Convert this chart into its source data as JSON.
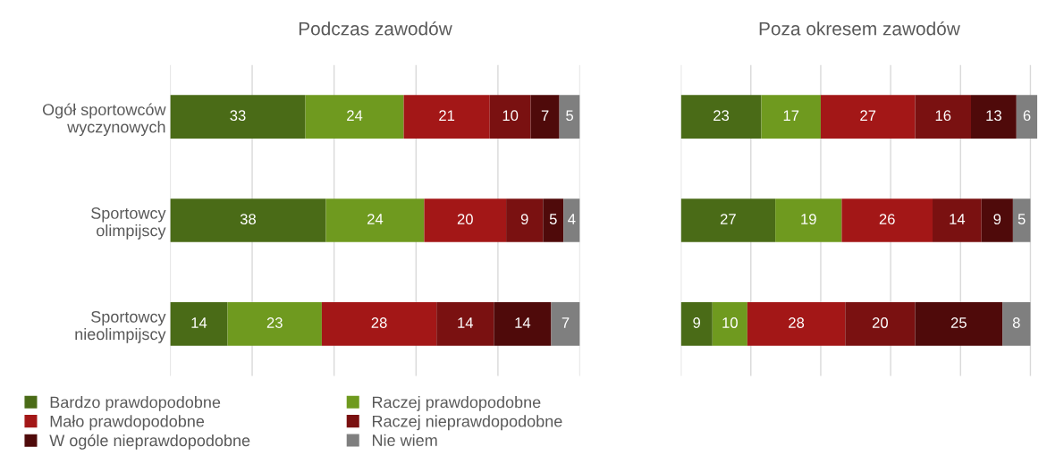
{
  "chart_data": [
    {
      "type": "bar",
      "orientation": "horizontal",
      "stacked": true,
      "title": "Podczas zawodów",
      "categories": [
        "Ogół sportowców\nwyczynowych",
        "Sportowcy\nolimpijscy",
        "Sportowcy\nnieolimpijscy"
      ],
      "series": [
        {
          "name": "Bardzo prawdopodobne",
          "color": "#4a6b17",
          "values": [
            33,
            38,
            14
          ]
        },
        {
          "name": "Raczej prawdopodobne",
          "color": "#6f9a1f",
          "values": [
            24,
            24,
            23
          ]
        },
        {
          "name": "Mało prawdopodobne",
          "color": "#a31717",
          "values": [
            21,
            20,
            28
          ]
        },
        {
          "name": "Raczej nieprawdopodobne",
          "color": "#7a1111",
          "values": [
            10,
            9,
            14
          ]
        },
        {
          "name": "W ogóle nieprawdopodobne",
          "color": "#4f0a0a",
          "values": [
            7,
            5,
            14
          ]
        },
        {
          "name": "Nie wiem",
          "color": "#7f7f7f",
          "values": [
            5,
            4,
            7
          ]
        }
      ],
      "xlim": [
        0,
        100
      ],
      "xticks": [
        {
          "value": 0,
          "label": null
        },
        {
          "value": 20,
          "label": null
        },
        {
          "value": 40,
          "label": null
        },
        {
          "value": 60,
          "label": null
        },
        {
          "value": 80,
          "label": null
        },
        {
          "value": 100,
          "label": null
        }
      ],
      "grid": "x",
      "data_labels": true,
      "tick_labels": "y",
      "legend": "bottom left"
    },
    {
      "type": "bar",
      "orientation": "horizontal",
      "stacked": true,
      "title": "Poza okresem zawodów",
      "categories": [
        null,
        null,
        null
      ],
      "series": [
        {
          "color": "#4a6b17",
          "values": [
            23,
            27,
            9
          ]
        },
        {
          "color": "#6f9a1f",
          "values": [
            17,
            19,
            10
          ]
        },
        {
          "color": "#a31717",
          "values": [
            27,
            26,
            28
          ]
        },
        {
          "color": "#7a1111",
          "values": [
            16,
            14,
            20
          ]
        },
        {
          "color": "#4f0a0a",
          "values": [
            13,
            9,
            25
          ]
        },
        {
          "color": "#7f7f7f",
          "values": [
            6,
            5,
            8
          ]
        }
      ],
      "xlim": [
        0,
        102
      ],
      "xticks": [
        {
          "value": 0,
          "label": null
        },
        {
          "value": 20,
          "label": null
        },
        {
          "value": 40,
          "label": null
        },
        {
          "value": 60,
          "label": null
        },
        {
          "value": 80,
          "label": null
        },
        {
          "value": 100,
          "label": null
        }
      ],
      "grid": "x",
      "data_labels": true,
      "tick_labels": false
    }
  ]
}
